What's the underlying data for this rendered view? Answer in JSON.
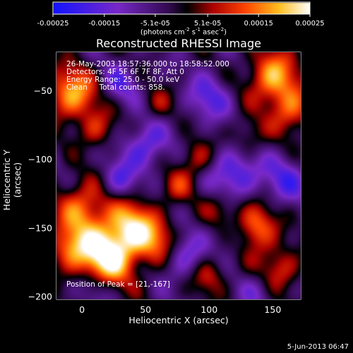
{
  "chart_data": {
    "type": "heatmap",
    "title": "Reconstructed RHESSI Image",
    "xlabel": "Heliocentric X (arcsec)",
    "ylabel": "Heliocentric Y (arcsec)",
    "xlim": [
      -20,
      172
    ],
    "ylim": [
      -202,
      -22
    ],
    "x_ticks": [
      0,
      50,
      100,
      150
    ],
    "x_tick_labels": [
      "0",
      "50",
      "100",
      "150"
    ],
    "y_ticks": [
      -50,
      -100,
      -150,
      -200
    ],
    "y_tick_labels": [
      "−50",
      "−100",
      "−150",
      "−200"
    ],
    "colorbar": {
      "range": [
        -0.00025,
        0.00025
      ],
      "ticks": [
        -0.00025,
        -0.00015,
        -5.1e-05,
        5.1e-05,
        0.00015,
        0.00025
      ],
      "tick_labels": [
        "-0.00025",
        "-0.00015",
        "-5.1e-05",
        "5.1e-05",
        "0.00015",
        "0.00025"
      ],
      "unit_main": "(photons cm",
      "unit_exp1": "-2",
      "unit_mid1": " s",
      "unit_exp2": "-1",
      "unit_mid2": " asec",
      "unit_exp3": "-2",
      "unit_end": ")"
    },
    "info_lines": [
      "26-May-2003 18:57:36.000 to 18:58:52.000",
      "Detectors: 4F 5F 6F 7F 8F, Att 0",
      "Energy Range: 25.0 - 50.0 keV",
      "Clean     Total counts: 858."
    ],
    "peak_label": "Position of Peak = [21,-167]",
    "peak_position": [
      21,
      -167
    ],
    "blobs": [
      {
        "x": 20,
        "y": -170,
        "v": 0.0003,
        "s": 16
      },
      {
        "x": 40,
        "y": -148,
        "v": 0.0002,
        "s": 14
      },
      {
        "x": 0,
        "y": -135,
        "v": 0.00018,
        "s": 14
      },
      {
        "x": -10,
        "y": -165,
        "v": 0.00016,
        "s": 12
      },
      {
        "x": 60,
        "y": -160,
        "v": 0.00014,
        "s": 12
      },
      {
        "x": -8,
        "y": -52,
        "v": 0.00022,
        "s": 14
      },
      {
        "x": 12,
        "y": -78,
        "v": 0.00012,
        "s": 10
      },
      {
        "x": 150,
        "y": -40,
        "v": 0.00022,
        "s": 14
      },
      {
        "x": 165,
        "y": -65,
        "v": 0.00016,
        "s": 12
      },
      {
        "x": 130,
        "y": -85,
        "v": 0.0001,
        "s": 10
      },
      {
        "x": 135,
        "y": -150,
        "v": 0.00022,
        "s": 12
      },
      {
        "x": 110,
        "y": -135,
        "v": 0.0001,
        "s": 10
      },
      {
        "x": 90,
        "y": -100,
        "v": 0.00012,
        "s": 10
      },
      {
        "x": 155,
        "y": -180,
        "v": 0.00014,
        "s": 12
      },
      {
        "x": 100,
        "y": -185,
        "v": 0.00012,
        "s": 10
      },
      {
        "x": 75,
        "y": -120,
        "v": 0.0001,
        "s": 9
      },
      {
        "x": 60,
        "y": -60,
        "v": 8e-05,
        "s": 9
      },
      {
        "x": 100,
        "y": -55,
        "v": -0.00012,
        "s": 12
      },
      {
        "x": 50,
        "y": -90,
        "v": -0.00014,
        "s": 12
      },
      {
        "x": 120,
        "y": -110,
        "v": -0.00016,
        "s": 14
      },
      {
        "x": 30,
        "y": -115,
        "v": -0.00012,
        "s": 10
      },
      {
        "x": 80,
        "y": -170,
        "v": -0.00012,
        "s": 12
      },
      {
        "x": 160,
        "y": -115,
        "v": -0.00012,
        "s": 12
      },
      {
        "x": 10,
        "y": -195,
        "v": -8e-05,
        "s": 10
      },
      {
        "x": 140,
        "y": -195,
        "v": -8e-05,
        "s": 10
      },
      {
        "x": 120,
        "y": -155,
        "v": -0.0001,
        "s": 10
      },
      {
        "x": 30,
        "y": -45,
        "v": -0.0001,
        "s": 10
      }
    ],
    "background_value": -4e-05
  },
  "footer_date": "5-Jun-2013 06:47"
}
